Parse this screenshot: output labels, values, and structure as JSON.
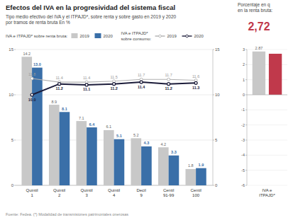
{
  "chart_data": [
    {
      "type": "bar",
      "title": "Efectos del IVA en la progresividad del sistema fiscal",
      "subtitle": [
        "Tipo medio efectivo del IVA y el ITPAJD*, sobre renta y sobre gasto en 2019 y 2020",
        "por tramos de renta bruta  En %"
      ],
      "annotations": [
        "IVA e ITPAJD* sobre renta bruta:",
        "IVA e ITPAJD*\nsobre consumo:"
      ],
      "footer": "Fuente: Fedea. (*) Modalidad de transmisiones patrimoniales onerosas",
      "categories": [
        "Quintil\n1",
        "Quintil\n2",
        "Quintil\n3",
        "Quintil\n4",
        "Decil\n9",
        "Centil\n91-99",
        "Centil\n100"
      ],
      "series": [
        {
          "name": "2019",
          "type": "bar",
          "color": "#c8c8c8",
          "values": [
            14.2,
            8.9,
            7.1,
            6.1,
            5.2,
            4.2,
            1.8
          ]
        },
        {
          "name": "2020",
          "type": "bar",
          "color": "#3a6fa8",
          "values": [
            13.0,
            8.1,
            6.4,
            5.1,
            4.3,
            3.3,
            1.9
          ],
          "value_labels": [
            "13.0",
            "8.1",
            "6.4",
            "5.1",
            "4.3",
            "3.3",
            "1.9"
          ]
        },
        {
          "name": "2019",
          "type": "line",
          "axis": "y2",
          "color": "#b0b0b0",
          "marker": "circle",
          "values": [
            11.8,
            11.4,
            11.4,
            11.5,
            11.7,
            11.7,
            11.6
          ]
        },
        {
          "name": "2020",
          "type": "line",
          "axis": "y2",
          "color": "#1c1c3a",
          "marker": "circle",
          "values": [
            10.0,
            11.2,
            11.1,
            11.2,
            11.4,
            11.2,
            11.3
          ],
          "value_labels": [
            "10.0",
            "11.2",
            "11.1",
            "11.2",
            "11.4",
            "11.2",
            "11.3"
          ]
        }
      ],
      "ylim": [
        0,
        15
      ],
      "yticks": [
        0,
        5,
        10,
        15
      ],
      "y2lim": [
        0,
        15
      ],
      "y2ticks": [
        0,
        5,
        10,
        15
      ],
      "grid": true,
      "legend": "top",
      "data_labels": true
    },
    {
      "type": "bar",
      "title": "Porcentaje en q\nen la renta bruta:",
      "categories": [
        "IVA e\nITPAJD*"
      ],
      "series": [
        {
          "color": "#c8c8c8",
          "values": [
            2.87
          ]
        },
        {
          "color": "#c0394b",
          "values": [
            2.72
          ],
          "value_labels": [
            "2,72"
          ]
        }
      ],
      "ylim": [
        -6,
        3
      ],
      "yticks": [
        -6,
        -5,
        -4,
        -3,
        -2,
        -1,
        0,
        1,
        2,
        3
      ],
      "grid": true,
      "data_labels": true
    }
  ]
}
